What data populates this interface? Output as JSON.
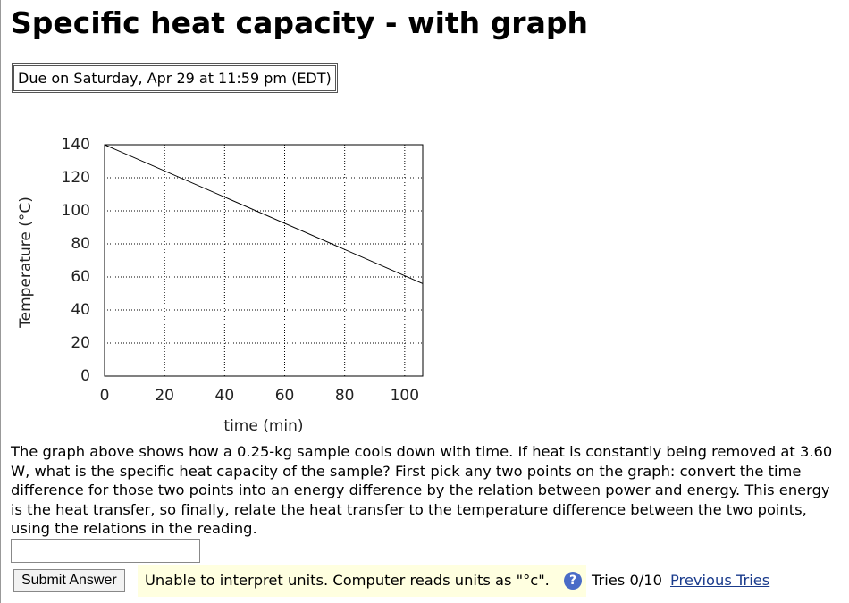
{
  "header": {
    "title": "Specific heat capacity - with graph",
    "due": "Due on Saturday, Apr 29 at 11:59 pm (EDT)"
  },
  "chart_data": {
    "type": "line",
    "x_label": "time (min)",
    "y_label": "Temperature (°C)",
    "x": [
      0,
      106
    ],
    "values": [
      140,
      56
    ],
    "color": "#000000",
    "xlim": [
      0,
      106
    ],
    "ylim": [
      0,
      140
    ],
    "xticks": [
      0,
      20,
      40,
      60,
      80,
      100
    ],
    "yticks": [
      0,
      20,
      40,
      60,
      80,
      100,
      120,
      140
    ],
    "grid": true
  },
  "question": {
    "text": "The graph above shows how a 0.25-kg sample cools down with time. If heat is constantly being removed at 3.60 W, what is the specific heat capacity of the sample? First pick any two points on the graph: convert the time difference for those two points into an energy difference by the relation between power and energy. This energy is the heat transfer, so finally, relate the heat transfer to the temperature difference between the two points, using the relations in the reading."
  },
  "answer": {
    "button": "Submit Answer",
    "feedback": "Unable to interpret units. Computer reads units as \"°c\".",
    "help_icon": "?",
    "tries": "Tries 0/10",
    "previous_tries": "Previous Tries"
  }
}
